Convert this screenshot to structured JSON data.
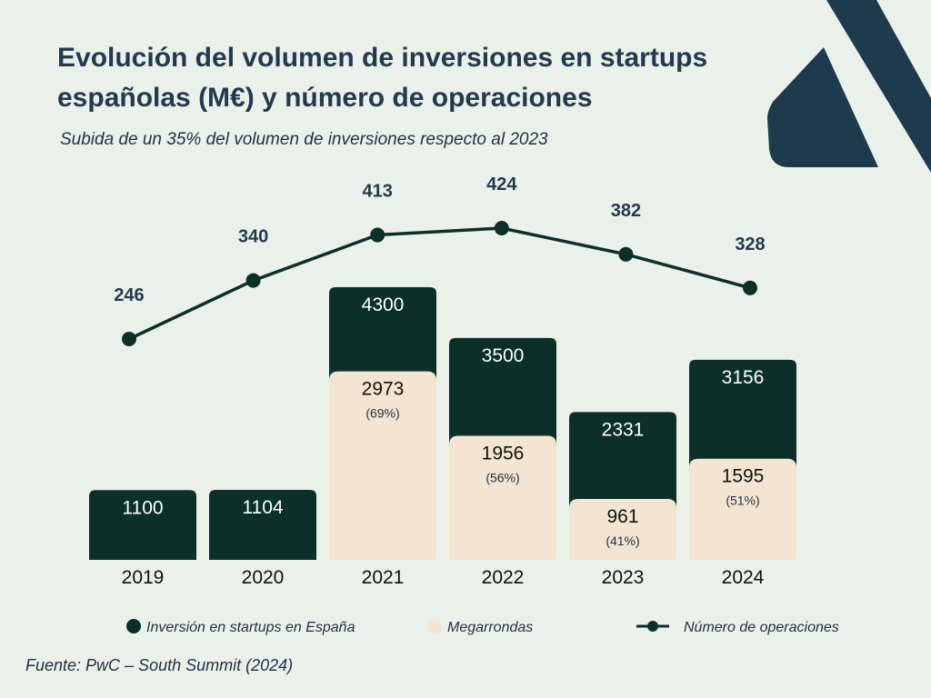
{
  "title": "Evolución del volumen de inversiones en startups españolas (M€) y número de operaciones",
  "subtitle": "Subida de un 35% del volumen de inversiones respecto al 2023",
  "source": "Fuente: PwC – South Summit (2024)",
  "colors": {
    "background": "#eaf1ea",
    "investment": "#0a3028",
    "megarounds": "#f3e5d1",
    "line": "#0a3028",
    "title": "#233a4e",
    "decoration": "#1e3a4d"
  },
  "chart_data": {
    "type": "bar",
    "categories": [
      "2019",
      "2020",
      "2021",
      "2022",
      "2023",
      "2024"
    ],
    "series": [
      {
        "name": "Inversión en startups en España",
        "type": "bar",
        "values": [
          1100,
          1104,
          4300,
          3500,
          2331,
          3156
        ]
      },
      {
        "name": "Megarrondas",
        "type": "bar",
        "values": [
          null,
          null,
          2973,
          1956,
          961,
          1595
        ],
        "share_labels": [
          "",
          "",
          "(69%)",
          "(56%)",
          "(41%)",
          "(51%)"
        ]
      },
      {
        "name": "Número de operaciones",
        "type": "line",
        "values": [
          246,
          340,
          413,
          424,
          382,
          328
        ]
      }
    ],
    "legend": [
      "Inversión en startups en España",
      "Megarrondas",
      "Número de operaciones"
    ],
    "legend_position": "bottom",
    "grid": false
  }
}
